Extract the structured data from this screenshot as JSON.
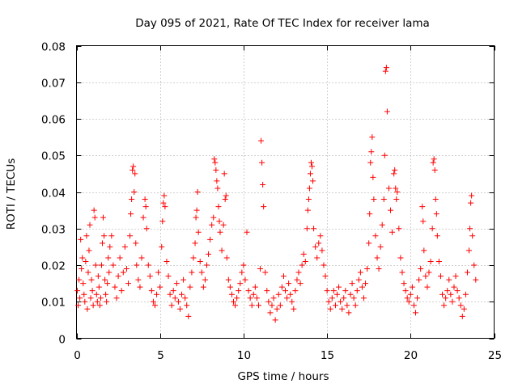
{
  "chart_data": {
    "type": "scatter",
    "title": "Day 095 of 2021, Rate Of TEC Index for receiver lama",
    "xlabel": "GPS time / hours",
    "ylabel": "ROTI / TECUs",
    "xlim": [
      0,
      25
    ],
    "ylim": [
      0,
      0.08
    ],
    "x_ticks": [
      0,
      5,
      10,
      15,
      20,
      25
    ],
    "x_tick_labels": [
      "0",
      "5",
      "10",
      "15",
      "20",
      "25"
    ],
    "y_ticks": [
      0,
      0.01,
      0.02,
      0.03,
      0.04,
      0.05,
      0.06,
      0.07,
      0.08
    ],
    "y_tick_labels": [
      "0",
      "0.01",
      "0.02",
      "0.03",
      "0.04",
      "0.05",
      "0.06",
      "0.07",
      "0.08"
    ],
    "grid": true,
    "marker": "+",
    "color": "#ff0000",
    "series": [
      {
        "name": "ROTI",
        "points": [
          [
            0.05,
            0.013
          ],
          [
            0.1,
            0.009
          ],
          [
            0.15,
            0.016
          ],
          [
            0.2,
            0.011
          ],
          [
            0.25,
            0.027
          ],
          [
            0.3,
            0.019
          ],
          [
            0.35,
            0.022
          ],
          [
            0.4,
            0.015
          ],
          [
            0.45,
            0.012
          ],
          [
            0.5,
            0.01
          ],
          [
            0.55,
            0.021
          ],
          [
            0.6,
            0.028
          ],
          [
            0.65,
            0.008
          ],
          [
            0.7,
            0.018
          ],
          [
            0.75,
            0.024
          ],
          [
            0.8,
            0.031
          ],
          [
            0.85,
            0.011
          ],
          [
            0.9,
            0.016
          ],
          [
            0.95,
            0.013
          ],
          [
            1.0,
            0.009
          ],
          [
            1.05,
            0.035
          ],
          [
            1.1,
            0.033
          ],
          [
            1.15,
            0.02
          ],
          [
            1.2,
            0.012
          ],
          [
            1.25,
            0.01
          ],
          [
            1.3,
            0.017
          ],
          [
            1.35,
            0.014
          ],
          [
            1.4,
            0.009
          ],
          [
            1.45,
            0.011
          ],
          [
            1.5,
            0.02
          ],
          [
            1.55,
            0.026
          ],
          [
            1.6,
            0.033
          ],
          [
            1.65,
            0.028
          ],
          [
            1.7,
            0.016
          ],
          [
            1.75,
            0.012
          ],
          [
            1.8,
            0.01
          ],
          [
            1.85,
            0.015
          ],
          [
            1.9,
            0.022
          ],
          [
            1.95,
            0.018
          ],
          [
            2.0,
            0.025
          ],
          [
            2.1,
            0.028
          ],
          [
            2.2,
            0.02
          ],
          [
            2.3,
            0.014
          ],
          [
            2.4,
            0.011
          ],
          [
            2.5,
            0.017
          ],
          [
            2.6,
            0.022
          ],
          [
            2.7,
            0.013
          ],
          [
            2.8,
            0.018
          ],
          [
            2.9,
            0.025
          ],
          [
            3.0,
            0.019
          ],
          [
            3.1,
            0.015
          ],
          [
            3.2,
            0.028
          ],
          [
            3.25,
            0.034
          ],
          [
            3.3,
            0.038
          ],
          [
            3.35,
            0.046
          ],
          [
            3.4,
            0.047
          ],
          [
            3.45,
            0.04
          ],
          [
            3.5,
            0.045
          ],
          [
            3.55,
            0.026
          ],
          [
            3.6,
            0.02
          ],
          [
            3.7,
            0.016
          ],
          [
            3.8,
            0.014
          ],
          [
            3.9,
            0.022
          ],
          [
            4.0,
            0.033
          ],
          [
            4.1,
            0.038
          ],
          [
            4.15,
            0.036
          ],
          [
            4.2,
            0.03
          ],
          [
            4.3,
            0.02
          ],
          [
            4.4,
            0.017
          ],
          [
            4.5,
            0.013
          ],
          [
            4.6,
            0.01
          ],
          [
            4.7,
            0.009
          ],
          [
            4.8,
            0.012
          ],
          [
            4.9,
            0.018
          ],
          [
            5.0,
            0.014
          ],
          [
            5.1,
            0.025
          ],
          [
            5.15,
            0.032
          ],
          [
            5.2,
            0.037
          ],
          [
            5.25,
            0.039
          ],
          [
            5.3,
            0.036
          ],
          [
            5.4,
            0.021
          ],
          [
            5.5,
            0.017
          ],
          [
            5.6,
            0.012
          ],
          [
            5.7,
            0.009
          ],
          [
            5.8,
            0.013
          ],
          [
            5.9,
            0.011
          ],
          [
            6.0,
            0.015
          ],
          [
            6.1,
            0.01
          ],
          [
            6.2,
            0.008
          ],
          [
            6.3,
            0.012
          ],
          [
            6.4,
            0.016
          ],
          [
            6.5,
            0.011
          ],
          [
            6.6,
            0.009
          ],
          [
            6.7,
            0.006
          ],
          [
            6.8,
            0.014
          ],
          [
            6.9,
            0.018
          ],
          [
            7.0,
            0.022
          ],
          [
            7.1,
            0.026
          ],
          [
            7.15,
            0.033
          ],
          [
            7.2,
            0.035
          ],
          [
            7.25,
            0.04
          ],
          [
            7.3,
            0.029
          ],
          [
            7.4,
            0.021
          ],
          [
            7.5,
            0.018
          ],
          [
            7.6,
            0.014
          ],
          [
            7.7,
            0.016
          ],
          [
            7.8,
            0.02
          ],
          [
            7.9,
            0.023
          ],
          [
            8.0,
            0.027
          ],
          [
            8.1,
            0.031
          ],
          [
            8.2,
            0.033
          ],
          [
            8.25,
            0.049
          ],
          [
            8.3,
            0.048
          ],
          [
            8.35,
            0.046
          ],
          [
            8.4,
            0.043
          ],
          [
            8.45,
            0.041
          ],
          [
            8.5,
            0.036
          ],
          [
            8.55,
            0.032
          ],
          [
            8.6,
            0.029
          ],
          [
            8.7,
            0.024
          ],
          [
            8.8,
            0.031
          ],
          [
            8.85,
            0.045
          ],
          [
            8.9,
            0.038
          ],
          [
            8.95,
            0.039
          ],
          [
            9.0,
            0.022
          ],
          [
            9.1,
            0.016
          ],
          [
            9.2,
            0.014
          ],
          [
            9.3,
            0.012
          ],
          [
            9.4,
            0.01
          ],
          [
            9.5,
            0.009
          ],
          [
            9.6,
            0.011
          ],
          [
            9.7,
            0.013
          ],
          [
            9.8,
            0.015
          ],
          [
            9.9,
            0.018
          ],
          [
            10.0,
            0.02
          ],
          [
            10.1,
            0.016
          ],
          [
            10.2,
            0.029
          ],
          [
            10.3,
            0.013
          ],
          [
            10.4,
            0.011
          ],
          [
            10.5,
            0.009
          ],
          [
            10.6,
            0.012
          ],
          [
            10.7,
            0.014
          ],
          [
            10.8,
            0.011
          ],
          [
            10.9,
            0.009
          ],
          [
            11.0,
            0.019
          ],
          [
            11.05,
            0.054
          ],
          [
            11.1,
            0.048
          ],
          [
            11.15,
            0.042
          ],
          [
            11.2,
            0.036
          ],
          [
            11.3,
            0.018
          ],
          [
            11.4,
            0.013
          ],
          [
            11.5,
            0.01
          ],
          [
            11.6,
            0.007
          ],
          [
            11.7,
            0.009
          ],
          [
            11.8,
            0.011
          ],
          [
            11.9,
            0.005
          ],
          [
            12.0,
            0.008
          ],
          [
            12.1,
            0.012
          ],
          [
            12.2,
            0.009
          ],
          [
            12.3,
            0.014
          ],
          [
            12.4,
            0.017
          ],
          [
            12.5,
            0.013
          ],
          [
            12.6,
            0.011
          ],
          [
            12.7,
            0.015
          ],
          [
            12.8,
            0.012
          ],
          [
            12.9,
            0.01
          ],
          [
            13.0,
            0.008
          ],
          [
            13.1,
            0.013
          ],
          [
            13.2,
            0.016
          ],
          [
            13.3,
            0.018
          ],
          [
            13.4,
            0.015
          ],
          [
            13.5,
            0.02
          ],
          [
            13.6,
            0.023
          ],
          [
            13.7,
            0.021
          ],
          [
            13.8,
            0.03
          ],
          [
            13.85,
            0.035
          ],
          [
            13.9,
            0.038
          ],
          [
            13.95,
            0.041
          ],
          [
            14.0,
            0.045
          ],
          [
            14.05,
            0.048
          ],
          [
            14.1,
            0.047
          ],
          [
            14.15,
            0.043
          ],
          [
            14.2,
            0.03
          ],
          [
            14.3,
            0.025
          ],
          [
            14.4,
            0.022
          ],
          [
            14.5,
            0.026
          ],
          [
            14.6,
            0.028
          ],
          [
            14.7,
            0.024
          ],
          [
            14.8,
            0.02
          ],
          [
            14.9,
            0.017
          ],
          [
            15.0,
            0.013
          ],
          [
            15.1,
            0.01
          ],
          [
            15.2,
            0.008
          ],
          [
            15.3,
            0.011
          ],
          [
            15.4,
            0.013
          ],
          [
            15.5,
            0.009
          ],
          [
            15.6,
            0.012
          ],
          [
            15.7,
            0.014
          ],
          [
            15.8,
            0.01
          ],
          [
            15.9,
            0.008
          ],
          [
            16.0,
            0.011
          ],
          [
            16.1,
            0.013
          ],
          [
            16.2,
            0.009
          ],
          [
            16.3,
            0.007
          ],
          [
            16.4,
            0.012
          ],
          [
            16.5,
            0.015
          ],
          [
            16.6,
            0.011
          ],
          [
            16.7,
            0.009
          ],
          [
            16.8,
            0.013
          ],
          [
            16.9,
            0.016
          ],
          [
            17.0,
            0.018
          ],
          [
            17.1,
            0.014
          ],
          [
            17.2,
            0.011
          ],
          [
            17.3,
            0.015
          ],
          [
            17.4,
            0.019
          ],
          [
            17.5,
            0.026
          ],
          [
            17.55,
            0.034
          ],
          [
            17.6,
            0.048
          ],
          [
            17.65,
            0.051
          ],
          [
            17.7,
            0.055
          ],
          [
            17.75,
            0.044
          ],
          [
            17.8,
            0.038
          ],
          [
            17.9,
            0.028
          ],
          [
            18.0,
            0.022
          ],
          [
            18.1,
            0.019
          ],
          [
            18.2,
            0.025
          ],
          [
            18.3,
            0.031
          ],
          [
            18.4,
            0.038
          ],
          [
            18.45,
            0.05
          ],
          [
            18.5,
            0.073
          ],
          [
            18.55,
            0.074
          ],
          [
            18.6,
            0.062
          ],
          [
            18.7,
            0.041
          ],
          [
            18.8,
            0.035
          ],
          [
            18.9,
            0.029
          ],
          [
            19.0,
            0.045
          ],
          [
            19.05,
            0.046
          ],
          [
            19.1,
            0.041
          ],
          [
            19.15,
            0.038
          ],
          [
            19.2,
            0.04
          ],
          [
            19.3,
            0.03
          ],
          [
            19.4,
            0.022
          ],
          [
            19.5,
            0.018
          ],
          [
            19.6,
            0.015
          ],
          [
            19.7,
            0.013
          ],
          [
            19.8,
            0.011
          ],
          [
            19.9,
            0.01
          ],
          [
            20.0,
            0.012
          ],
          [
            20.1,
            0.014
          ],
          [
            20.2,
            0.009
          ],
          [
            20.3,
            0.007
          ],
          [
            20.4,
            0.011
          ],
          [
            20.5,
            0.016
          ],
          [
            20.6,
            0.019
          ],
          [
            20.7,
            0.036
          ],
          [
            20.75,
            0.032
          ],
          [
            20.8,
            0.024
          ],
          [
            20.9,
            0.017
          ],
          [
            21.0,
            0.014
          ],
          [
            21.1,
            0.018
          ],
          [
            21.2,
            0.021
          ],
          [
            21.3,
            0.03
          ],
          [
            21.35,
            0.048
          ],
          [
            21.4,
            0.049
          ],
          [
            21.45,
            0.046
          ],
          [
            21.5,
            0.038
          ],
          [
            21.55,
            0.034
          ],
          [
            21.6,
            0.028
          ],
          [
            21.7,
            0.021
          ],
          [
            21.8,
            0.017
          ],
          [
            21.9,
            0.012
          ],
          [
            22.0,
            0.009
          ],
          [
            22.1,
            0.011
          ],
          [
            22.2,
            0.013
          ],
          [
            22.3,
            0.016
          ],
          [
            22.4,
            0.012
          ],
          [
            22.5,
            0.01
          ],
          [
            22.6,
            0.014
          ],
          [
            22.7,
            0.017
          ],
          [
            22.8,
            0.013
          ],
          [
            22.9,
            0.011
          ],
          [
            23.0,
            0.009
          ],
          [
            23.1,
            0.006
          ],
          [
            23.2,
            0.008
          ],
          [
            23.3,
            0.012
          ],
          [
            23.4,
            0.018
          ],
          [
            23.5,
            0.024
          ],
          [
            23.55,
            0.03
          ],
          [
            23.6,
            0.037
          ],
          [
            23.65,
            0.039
          ],
          [
            23.7,
            0.028
          ],
          [
            23.8,
            0.02
          ],
          [
            23.9,
            0.016
          ]
        ]
      }
    ]
  }
}
